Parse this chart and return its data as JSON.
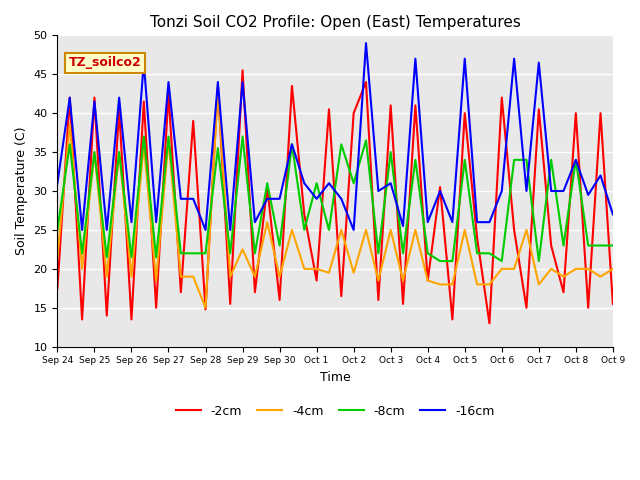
{
  "title": "Tonzi Soil CO2 Profile: Open (East) Temperatures",
  "xlabel": "Time",
  "ylabel": "Soil Temperature (C)",
  "ylim": [
    10,
    50
  ],
  "annotation_text": "TZ_soilco2",
  "bg_color": "#e8e8e8",
  "legend_labels": [
    "-2cm",
    "-4cm",
    "-8cm",
    "-16cm"
  ],
  "legend_colors": [
    "#ff0000",
    "#ffa500",
    "#00cc00",
    "#0000ff"
  ],
  "line_width": 1.5,
  "tick_labels": [
    "Sep 24",
    "Sep 25",
    "Sep 26",
    "Sep 27",
    "Sep 28",
    "Sep 29",
    "Sep 30",
    "Oct 1",
    "Oct 2",
    "Oct 3",
    "Oct 4",
    "Oct 5",
    "Oct 6",
    "Oct 7",
    "Oct 8",
    "Oct 9"
  ],
  "series_2cm": [
    17.5,
    42.0,
    13.5,
    42.0,
    14.0,
    40.5,
    13.5,
    41.5,
    15.0,
    42.5,
    17.0,
    39.0,
    14.8,
    43.5,
    15.5,
    45.5,
    17.0,
    30.5,
    16.0,
    43.5,
    27.0,
    18.5,
    40.5,
    16.5,
    40.0,
    44.0,
    16.0,
    41.0,
    15.5,
    41.0,
    18.5,
    30.5,
    13.5,
    40.0,
    24.0,
    13.0,
    42.0,
    25.0,
    15.0,
    40.5,
    23.0,
    17.0,
    40.0,
    15.0,
    40.0,
    15.5
  ],
  "series_4cm": [
    21.5,
    38.5,
    20.0,
    35.0,
    19.0,
    35.0,
    19.0,
    36.0,
    18.5,
    36.5,
    19.0,
    19.0,
    15.0,
    43.0,
    19.0,
    22.5,
    19.0,
    26.0,
    19.0,
    25.0,
    20.0,
    20.0,
    19.5,
    25.0,
    19.5,
    25.0,
    18.5,
    25.0,
    18.5,
    25.0,
    18.5,
    18.0,
    18.0,
    25.0,
    18.0,
    18.0,
    20.0,
    20.0,
    25.0,
    18.0,
    20.0,
    19.0,
    20.0,
    20.0,
    19.0,
    20.0
  ],
  "series_8cm": [
    25.0,
    36.0,
    22.0,
    35.0,
    21.5,
    35.0,
    21.5,
    37.0,
    21.5,
    37.0,
    22.0,
    22.0,
    22.0,
    35.5,
    22.0,
    37.0,
    22.0,
    31.0,
    23.0,
    36.0,
    25.0,
    31.0,
    25.0,
    36.0,
    31.0,
    36.5,
    22.0,
    35.0,
    22.0,
    34.0,
    22.0,
    21.0,
    21.0,
    34.0,
    22.0,
    22.0,
    21.0,
    34.0,
    34.0,
    21.0,
    34.0,
    23.0,
    34.0,
    23.0,
    23.0,
    23.0
  ],
  "series_16cm": [
    31.0,
    42.0,
    25.0,
    41.5,
    25.0,
    42.0,
    26.0,
    46.5,
    26.0,
    44.0,
    29.0,
    29.0,
    25.0,
    44.0,
    25.0,
    44.0,
    26.0,
    29.0,
    29.0,
    36.0,
    31.0,
    29.0,
    31.0,
    29.0,
    25.0,
    49.0,
    30.0,
    31.0,
    25.5,
    47.0,
    26.0,
    30.0,
    26.0,
    47.0,
    26.0,
    26.0,
    30.0,
    47.0,
    30.0,
    46.5,
    30.0,
    30.0,
    34.0,
    29.5,
    32.0,
    27.0
  ]
}
